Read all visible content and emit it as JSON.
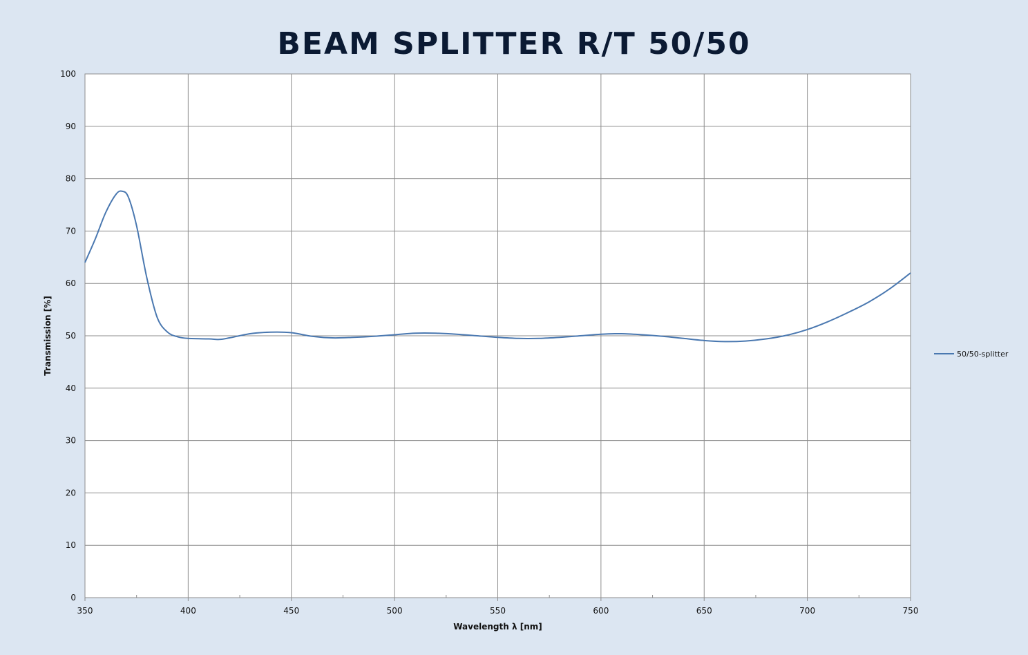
{
  "chart_data": {
    "type": "line",
    "title": "BEAM SPLITTER R/T 50/50",
    "xlabel": "Wavelength λ [nm]",
    "ylabel": "Transmission [%]",
    "xlim": [
      350,
      750
    ],
    "ylim": [
      0,
      100
    ],
    "x_ticks": [
      350,
      400,
      450,
      500,
      550,
      600,
      650,
      700,
      750
    ],
    "y_ticks": [
      0,
      10,
      20,
      30,
      40,
      50,
      60,
      70,
      80,
      90,
      100
    ],
    "grid": true,
    "legend_position": "right",
    "series": [
      {
        "name": "50/50-splitter",
        "color": "#4a78b0",
        "x": [
          350,
          355,
          360,
          365,
          368,
          371,
          375,
          380,
          385,
          390,
          395,
          400,
          410,
          415,
          420,
          430,
          440,
          450,
          460,
          470,
          480,
          490,
          500,
          510,
          520,
          530,
          540,
          550,
          560,
          570,
          580,
          590,
          600,
          610,
          620,
          630,
          640,
          650,
          660,
          670,
          680,
          690,
          700,
          710,
          720,
          730,
          740,
          750
        ],
        "values": [
          64.0,
          68.5,
          73.5,
          77.0,
          77.6,
          76.5,
          71.0,
          61.0,
          53.5,
          50.7,
          49.8,
          49.5,
          49.4,
          49.3,
          49.6,
          50.4,
          50.7,
          50.6,
          49.9,
          49.6,
          49.7,
          49.9,
          50.2,
          50.5,
          50.5,
          50.3,
          50.0,
          49.7,
          49.5,
          49.5,
          49.7,
          50.0,
          50.3,
          50.4,
          50.2,
          49.9,
          49.5,
          49.1,
          48.9,
          49.0,
          49.4,
          50.1,
          51.2,
          52.7,
          54.5,
          56.5,
          59.0,
          62.0
        ]
      }
    ]
  }
}
